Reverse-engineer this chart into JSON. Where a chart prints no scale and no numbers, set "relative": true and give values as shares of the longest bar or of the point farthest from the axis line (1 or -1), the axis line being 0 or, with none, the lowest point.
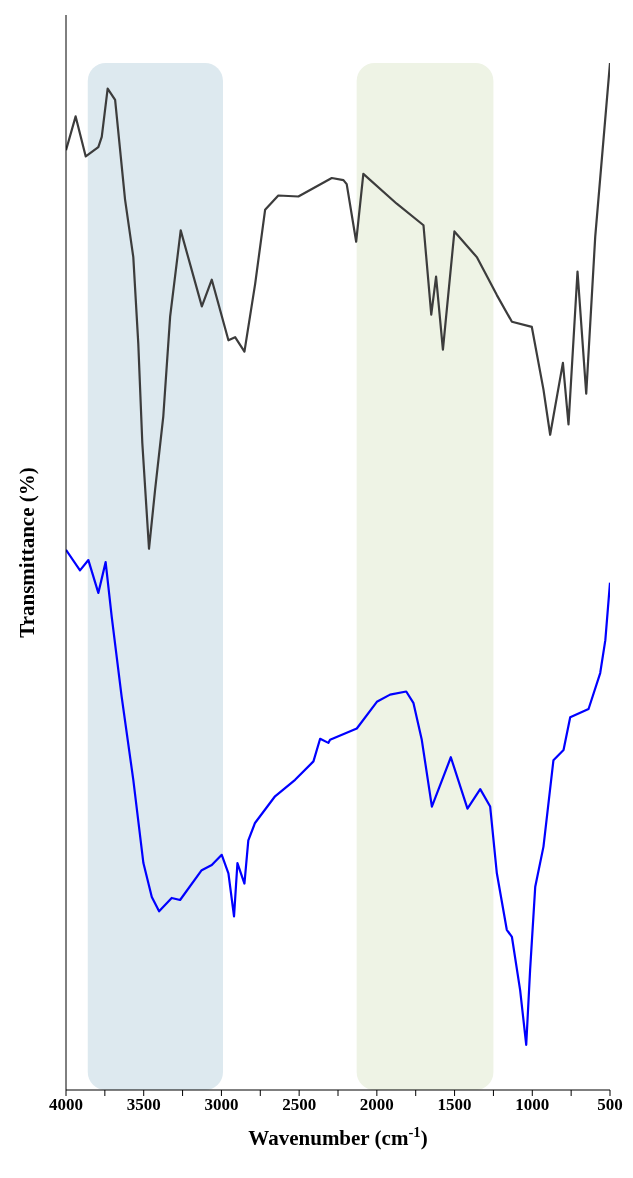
{
  "chart_data": {
    "type": "line",
    "relative": true,
    "xlabel": "Wavenumber (cm$^{-1}$)",
    "ylabel": "Transmittance (%)",
    "xlim": [
      4000,
      500
    ],
    "xticks": [
      4000,
      {
        "value": 3750,
        "label": null
      },
      3500,
      {
        "value": 3250,
        "label": null
      },
      3000,
      {
        "value": 2750,
        "label": null
      },
      2500,
      {
        "value": 2250,
        "label": null
      },
      2000,
      {
        "value": 1750,
        "label": null
      },
      1500,
      {
        "value": 1250,
        "label": null
      },
      1000,
      {
        "value": 750,
        "label": null
      },
      500
    ],
    "grid": false,
    "marker": "none",
    "line_style": "solid",
    "bands": [
      {
        "axis": "x",
        "from": 3860,
        "to": 2990,
        "color": "#dde9ef"
      },
      {
        "axis": "x",
        "from": 2130,
        "to": 1250,
        "color": "#eef3e5"
      }
    ],
    "series": [
      {
        "color": "#3c3c3c",
        "x": [
          4000,
          3938,
          3873,
          3792,
          3770,
          3732,
          3684,
          3620,
          3567,
          3535,
          3509,
          3466,
          3427,
          3374,
          3330,
          3262,
          3126,
          3062,
          2955,
          2912,
          2852,
          2783,
          2719,
          2634,
          2505,
          2290,
          2215,
          2194,
          2133,
          2087,
          1872,
          1700,
          1650,
          1619,
          1575,
          1501,
          1357,
          1228,
          1131,
          1003,
          928,
          885,
          803,
          767,
          709,
          653,
          595,
          500
        ],
        "values": [
          0.915,
          0.948,
          0.909,
          0.918,
          0.928,
          0.975,
          0.964,
          0.867,
          0.811,
          0.727,
          0.63,
          0.527,
          0.584,
          0.656,
          0.753,
          0.837,
          0.763,
          0.789,
          0.73,
          0.733,
          0.719,
          0.785,
          0.857,
          0.871,
          0.87,
          0.888,
          0.886,
          0.882,
          0.826,
          0.892,
          0.863,
          0.842,
          0.755,
          0.792,
          0.721,
          0.836,
          0.811,
          0.774,
          0.748,
          0.743,
          0.682,
          0.638,
          0.708,
          0.648,
          0.797,
          0.678,
          0.831,
          1
        ]
      },
      {
        "color": "#0000ff",
        "x": [
          4000,
          3910,
          3856,
          3792,
          3745,
          3706,
          3642,
          3567,
          3502,
          3448,
          3401,
          3320,
          3266,
          3127,
          3062,
          2998,
          2955,
          2919,
          2897,
          2852,
          2827,
          2784,
          2655,
          2526,
          2408,
          2365,
          2312,
          2301,
          2129,
          2000,
          1915,
          1811,
          1765,
          1711,
          1646,
          1524,
          1417,
          1335,
          1271,
          1228,
          1164,
          1131,
          1078,
          1039,
          1014,
          981,
          928,
          864,
          799,
          756,
          638,
          563,
          530,
          500
        ],
        "values": [
          0.526,
          0.506,
          0.516,
          0.484,
          0.514,
          0.461,
          0.383,
          0.302,
          0.221,
          0.188,
          0.174,
          0.187,
          0.185,
          0.214,
          0.219,
          0.229,
          0.211,
          0.169,
          0.221,
          0.201,
          0.243,
          0.26,
          0.286,
          0.302,
          0.32,
          0.342,
          0.338,
          0.341,
          0.352,
          0.378,
          0.385,
          0.388,
          0.377,
          0.341,
          0.276,
          0.324,
          0.274,
          0.293,
          0.276,
          0.211,
          0.156,
          0.149,
          0.097,
          0.044,
          0.117,
          0.198,
          0.237,
          0.321,
          0.331,
          0.363,
          0.371,
          0.406,
          0.438,
          0.494
        ]
      }
    ]
  }
}
